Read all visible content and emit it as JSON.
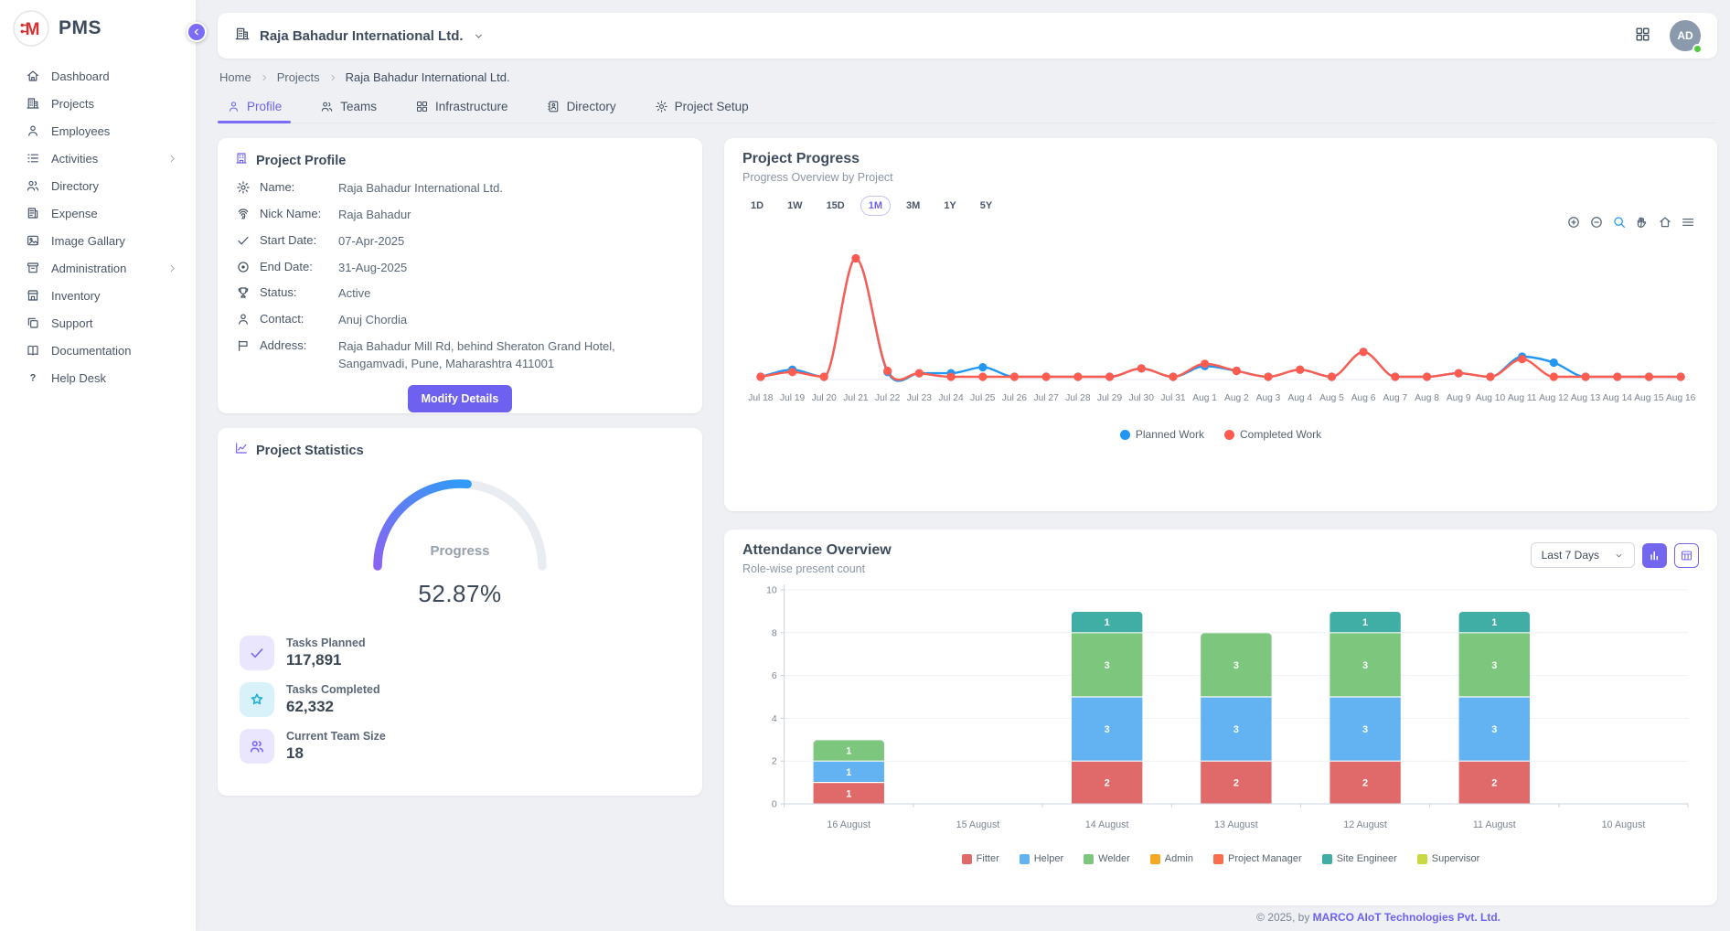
{
  "app": {
    "name": "PMS"
  },
  "colors": {
    "accent": "#6e62f2",
    "planned": "#2196f3",
    "completed": "#ff5b4f",
    "online": "#53ca3e"
  },
  "sidebar": {
    "items": [
      {
        "label": "Dashboard",
        "icon": "home-icon",
        "expandable": false
      },
      {
        "label": "Projects",
        "icon": "building-icon",
        "expandable": false
      },
      {
        "label": "Employees",
        "icon": "person-icon",
        "expandable": false
      },
      {
        "label": "Activities",
        "icon": "list-icon",
        "expandable": true
      },
      {
        "label": "Directory",
        "icon": "people-icon",
        "expandable": false
      },
      {
        "label": "Expense",
        "icon": "receipt-icon",
        "expandable": false
      },
      {
        "label": "Image Gallary",
        "icon": "image-icon",
        "expandable": false
      },
      {
        "label": "Administration",
        "icon": "archive-icon",
        "expandable": true
      },
      {
        "label": "Inventory",
        "icon": "store-icon",
        "expandable": false
      },
      {
        "label": "Support",
        "icon": "copy-icon",
        "expandable": false
      },
      {
        "label": "Documentation",
        "icon": "book-icon",
        "expandable": false
      },
      {
        "label": "Help Desk",
        "icon": "help-icon",
        "expandable": false
      }
    ]
  },
  "topbar": {
    "company": "Raja Bahadur International Ltd.",
    "company_icon": "building-icon",
    "apps_icon": "apps-grid-icon",
    "avatar_initials": "AD",
    "status": "online"
  },
  "breadcrumb": [
    "Home",
    "Projects",
    "Raja Bahadur International Ltd."
  ],
  "tabs": [
    {
      "label": "Profile",
      "icon": "person-icon",
      "active": true
    },
    {
      "label": "Teams",
      "icon": "people-icon",
      "active": false
    },
    {
      "label": "Infrastructure",
      "icon": "apps-grid-icon",
      "active": false
    },
    {
      "label": "Directory",
      "icon": "contact-book-icon",
      "active": false
    },
    {
      "label": "Project Setup",
      "icon": "gear-icon",
      "active": false
    }
  ],
  "profile_card": {
    "title": "Project Profile",
    "title_icon": "building-badge-icon",
    "fields": [
      {
        "icon": "gear-icon",
        "label": "Name:",
        "value": "Raja Bahadur International Ltd."
      },
      {
        "icon": "fingerprint-icon",
        "label": "Nick Name:",
        "value": "Raja Bahadur"
      },
      {
        "icon": "check-icon",
        "label": "Start Date:",
        "value": "07-Apr-2025"
      },
      {
        "icon": "target-icon",
        "label": "End Date:",
        "value": "31-Aug-2025"
      },
      {
        "icon": "trophy-icon",
        "label": "Status:",
        "value": "Active"
      },
      {
        "icon": "person-icon",
        "label": "Contact:",
        "value": "Anuj Chordia"
      },
      {
        "icon": "flag-icon",
        "label": "Address:",
        "value": "Raja Bahadur Mill Rd, behind Sheraton Grand Hotel, Sangamvadi, Pune, Maharashtra 411001"
      }
    ],
    "button_label": "Modify Details"
  },
  "stats_card": {
    "title": "Project Statistics",
    "title_icon": "chart-line-icon",
    "gauge": {
      "label": "Progress",
      "percent": 52.87,
      "display": "52.87%"
    },
    "stats": [
      {
        "icon": "check-icon",
        "tint": "lavender",
        "label": "Tasks Planned",
        "value": "117,891"
      },
      {
        "icon": "star-icon",
        "tint": "cyan",
        "label": "Tasks Completed",
        "value": "62,332"
      },
      {
        "icon": "people-icon",
        "tint": "lavender",
        "label": "Current Team Size",
        "value": "18"
      }
    ]
  },
  "progress_chart": {
    "title": "Project Progress",
    "subtitle": "Progress Overview by Project",
    "ranges": [
      "1D",
      "1W",
      "15D",
      "1M",
      "3M",
      "1Y",
      "5Y"
    ],
    "active_range": "1M",
    "toolbar": [
      "zoom-in-icon",
      "zoom-out-icon",
      "magnifier-icon",
      "pan-icon",
      "reset-home-icon",
      "menu-icon"
    ]
  },
  "attendance": {
    "title": "Attendance Overview",
    "subtitle": "Role-wise present count",
    "dropdown_value": "Last 7 Days",
    "view_buttons": [
      {
        "icon": "bar-chart-icon",
        "active": true
      },
      {
        "icon": "table-icon",
        "active": false
      }
    ]
  },
  "footer": {
    "text": "© 2025, by ",
    "link": "MARCO AIoT Technologies Pvt. Ltd."
  },
  "chart_data": [
    {
      "type": "line",
      "title": "Project Progress",
      "legend_position": "bottom",
      "grid": false,
      "y_axis_hidden": true,
      "ylim": [
        0,
        105
      ],
      "x": [
        "Jul 18",
        "Jul 19",
        "Jul 20",
        "Jul 21",
        "Jul 22",
        "Jul 23",
        "Jul 24",
        "Jul 25",
        "Jul 26",
        "Jul 27",
        "Jul 28",
        "Jul 29",
        "Jul 30",
        "Jul 31",
        "Aug 1",
        "Aug 2",
        "Aug 3",
        "Aug 4",
        "Aug 5",
        "Aug 6",
        "Aug 7",
        "Aug 8",
        "Aug 9",
        "Aug 10",
        "Aug 11",
        "Aug 12",
        "Aug 13",
        "Aug 14",
        "Aug 15",
        "Aug 16"
      ],
      "series": [
        {
          "name": "Planned Work",
          "color": "#2196f3",
          "values": [
            0,
            6,
            0,
            100,
            4,
            3,
            3,
            8,
            0,
            0,
            0,
            0,
            7,
            0,
            9,
            5,
            0,
            6,
            0,
            21,
            0,
            0,
            3,
            0,
            17,
            12,
            0,
            0,
            0,
            0
          ]
        },
        {
          "name": "Completed Work",
          "color": "#ff5b4f",
          "values": [
            0,
            4,
            0,
            100,
            5,
            3,
            0,
            0,
            0,
            0,
            0,
            0,
            7,
            0,
            11,
            5,
            0,
            6,
            0,
            21,
            0,
            0,
            3,
            0,
            15,
            0,
            0,
            0,
            0,
            0
          ]
        }
      ]
    },
    {
      "type": "bar",
      "stacked": true,
      "title": "Attendance Overview",
      "ylim": [
        0,
        10
      ],
      "yticks": [
        0,
        2,
        4,
        6,
        8,
        10
      ],
      "legend_position": "bottom",
      "categories": [
        "16 August",
        "15 August",
        "14 August",
        "13 August",
        "12 August",
        "11 August",
        "10 August"
      ],
      "series": [
        {
          "name": "Fitter",
          "color": "#e06a6a",
          "values": [
            1,
            0,
            2,
            2,
            2,
            2,
            0
          ]
        },
        {
          "name": "Helper",
          "color": "#63b3f2",
          "values": [
            1,
            0,
            3,
            3,
            3,
            3,
            0
          ]
        },
        {
          "name": "Welder",
          "color": "#7cc67e",
          "values": [
            1,
            0,
            3,
            3,
            3,
            3,
            0
          ]
        },
        {
          "name": "Admin",
          "color": "#f7a823",
          "values": [
            0,
            0,
            0,
            0,
            0,
            0,
            0
          ]
        },
        {
          "name": "Project Manager",
          "color": "#f86f4d",
          "values": [
            0,
            0,
            0,
            0,
            0,
            0,
            0
          ]
        },
        {
          "name": "Site Engineer",
          "color": "#41aea6",
          "values": [
            0,
            0,
            1,
            0,
            1,
            1,
            0
          ]
        },
        {
          "name": "Supervisor",
          "color": "#c9d845",
          "values": [
            0,
            0,
            0,
            0,
            0,
            0,
            0
          ]
        }
      ]
    }
  ]
}
